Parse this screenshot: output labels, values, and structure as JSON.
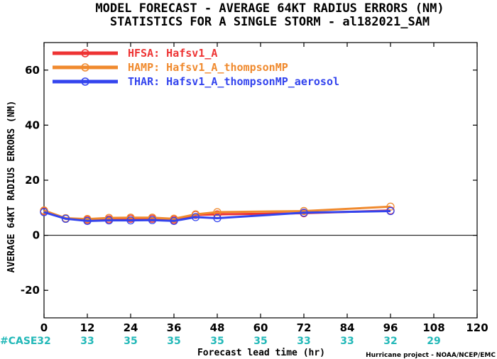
{
  "chart_data": {
    "type": "line",
    "title": "MODEL FORECAST - AVERAGE 64KT RADIUS ERRORS (NM)",
    "subtitle": "STATISTICS FOR A SINGLE STORM - al182021_SAM",
    "xlabel": "Forecast lead time (hr)",
    "ylabel": "AVERAGE 64KT RADIUS ERRORS (NM)",
    "xlim": [
      0,
      120
    ],
    "ylim": [
      -30,
      70
    ],
    "xticks": [
      "0",
      "12",
      "24",
      "36",
      "48",
      "60",
      "72",
      "84",
      "96",
      "108",
      "120"
    ],
    "yticks": [
      "60",
      "40",
      "20",
      "0",
      "-20"
    ],
    "grid": false,
    "legend_position": "top-left",
    "series": [
      {
        "name": "HFSA: Hafsv1_A",
        "color": "#ee3333",
        "x": [
          0,
          6,
          12,
          18,
          24,
          30,
          36,
          42,
          48,
          72,
          96
        ],
        "values": [
          8.8,
          6.0,
          5.6,
          5.8,
          6.0,
          6.0,
          5.6,
          7.4,
          7.6,
          8.0,
          9.0
        ]
      },
      {
        "name": "HAMP: Hafsv1_A_thompsonMP",
        "color": "#f08a2e",
        "x": [
          0,
          6,
          12,
          18,
          24,
          30,
          36,
          42,
          48,
          72,
          96
        ],
        "values": [
          9.0,
          6.2,
          5.9,
          6.3,
          6.4,
          6.4,
          6.0,
          7.6,
          8.4,
          8.8,
          10.4
        ]
      },
      {
        "name": "THAR: Hafsv1_A_thompsonMP_aerosol",
        "color": "#3344ee",
        "x": [
          0,
          6,
          12,
          18,
          24,
          30,
          36,
          42,
          48,
          72,
          96
        ],
        "values": [
          8.4,
          6.0,
          5.2,
          5.4,
          5.4,
          5.5,
          5.2,
          6.6,
          6.2,
          8.2,
          8.8
        ]
      }
    ],
    "case_label": "#CASE",
    "case_counts": [
      {
        "x": 0,
        "label": "32"
      },
      {
        "x": 12,
        "label": "33"
      },
      {
        "x": 24,
        "label": "35"
      },
      {
        "x": 36,
        "label": "35"
      },
      {
        "x": 48,
        "label": "35"
      },
      {
        "x": 60,
        "label": "35"
      },
      {
        "x": 72,
        "label": "33"
      },
      {
        "x": 84,
        "label": "33"
      },
      {
        "x": 96,
        "label": "32"
      },
      {
        "x": 108,
        "label": "29"
      }
    ],
    "credit": "Hurricane project - NOAA/NCEP/EMC"
  }
}
